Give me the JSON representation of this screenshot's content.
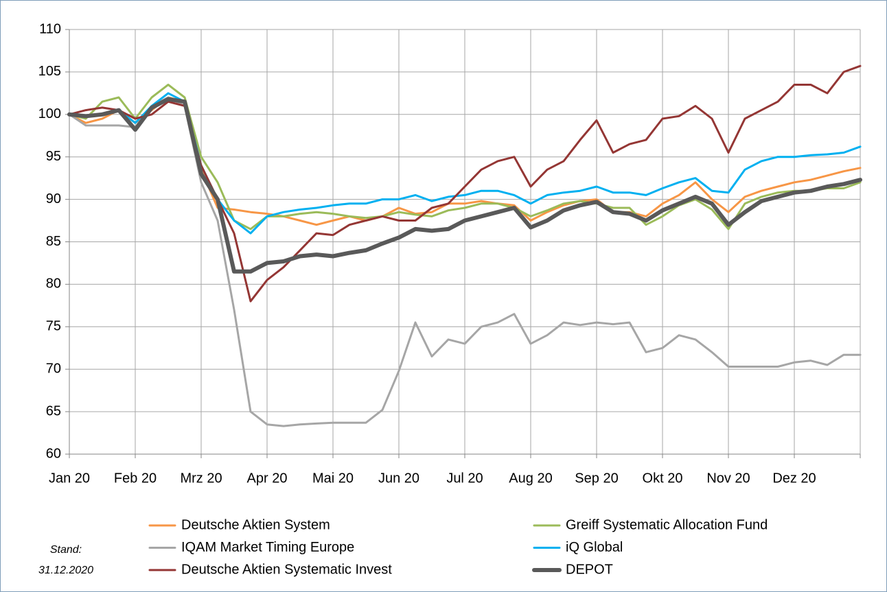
{
  "chart_data": {
    "type": "line",
    "categories": [
      "Jan 20",
      null,
      null,
      null,
      "Feb 20",
      null,
      null,
      null,
      "Mrz 20",
      null,
      null,
      null,
      "Apr 20",
      null,
      null,
      null,
      "Mai 20",
      null,
      null,
      null,
      "Jun 20",
      null,
      null,
      null,
      "Jul 20",
      null,
      null,
      null,
      "Aug 20",
      null,
      null,
      null,
      "Sep 20",
      null,
      null,
      null,
      "Okt 20",
      null,
      null,
      null,
      "Nov 20",
      null,
      null,
      null,
      "Dez 20",
      null,
      null,
      null,
      null
    ],
    "ylim": [
      60,
      110
    ],
    "yticks": [
      60,
      65,
      70,
      75,
      80,
      85,
      90,
      95,
      100,
      105,
      110
    ],
    "grid": true,
    "annotation": [
      "Stand:",
      "31.12.2020"
    ],
    "series": [
      {
        "name": "Deutsche Aktien System",
        "color": "#f79646",
        "width": 3,
        "values": [
          100,
          99,
          99.5,
          100.5,
          99,
          100.5,
          102,
          101.5,
          93.5,
          89,
          88.8,
          88.5,
          88.3,
          88,
          87.5,
          87,
          87.5,
          88,
          87.5,
          88,
          89,
          88.3,
          88.5,
          89.5,
          89.5,
          89.8,
          89.5,
          89.3,
          87.5,
          88.5,
          89.3,
          89.8,
          90,
          88.5,
          88.5,
          88,
          89.5,
          90.5,
          92,
          90,
          88.5,
          90.3,
          91,
          91.5,
          92,
          92.3,
          92.8,
          93.3,
          93.7
        ]
      },
      {
        "name": "Greiff Systematic Allocation Fund",
        "color": "#9bbb59",
        "width": 3,
        "values": [
          100,
          99.5,
          101.5,
          102,
          99.5,
          102,
          103.5,
          102,
          95,
          92,
          87.5,
          86.5,
          88,
          88,
          88.3,
          88.5,
          88.3,
          88,
          87.8,
          88,
          88.5,
          88.2,
          88,
          88.7,
          89,
          89.5,
          89.5,
          89,
          88,
          88.7,
          89.5,
          89.8,
          89.5,
          89,
          89,
          87,
          88,
          89.3,
          90,
          88.8,
          86.5,
          89.5,
          90.3,
          90.8,
          91,
          91,
          91.3,
          91.3,
          92
        ]
      },
      {
        "name": "IQAM Market Timing Europe",
        "color": "#a6a6a6",
        "width": 3,
        "values": [
          100,
          98.7,
          98.7,
          98.7,
          98.5,
          101,
          102,
          101,
          92,
          87.5,
          77,
          65,
          63.5,
          63.3,
          63.5,
          63.6,
          63.7,
          63.7,
          63.7,
          65.2,
          69.8,
          75.5,
          71.5,
          73.5,
          73,
          75,
          75.5,
          76.5,
          73,
          74,
          75.5,
          75.2,
          75.5,
          75.3,
          75.5,
          72,
          72.5,
          74,
          73.5,
          72,
          70.3,
          70.3,
          70.3,
          70.3,
          70.8,
          71,
          70.5,
          71.7,
          71.7
        ]
      },
      {
        "name": "iQ Global",
        "color": "#00b0f0",
        "width": 3,
        "values": [
          100,
          99.8,
          100,
          100.5,
          99,
          101,
          102.5,
          101.5,
          94,
          90,
          87.5,
          86,
          88,
          88.5,
          88.8,
          89,
          89.3,
          89.5,
          89.5,
          90,
          90,
          90.5,
          89.8,
          90.3,
          90.5,
          91,
          91,
          90.5,
          89.5,
          90.5,
          90.8,
          91,
          91.5,
          90.8,
          90.8,
          90.5,
          91.3,
          92,
          92.5,
          91,
          90.8,
          93.5,
          94.5,
          95,
          95,
          95.2,
          95.3,
          95.5,
          96.2
        ]
      },
      {
        "name": "Deutsche Aktien Systematic Invest",
        "color": "#943634",
        "width": 3,
        "values": [
          100,
          100.5,
          100.8,
          100.5,
          99.5,
          100,
          101.5,
          101,
          94,
          90,
          86,
          78,
          80.5,
          82,
          84,
          86,
          85.8,
          87,
          87.5,
          88,
          87.5,
          87.5,
          89,
          89.5,
          91.5,
          93.5,
          94.5,
          95,
          91.5,
          93.5,
          94.5,
          97,
          99.3,
          95.5,
          96.5,
          97,
          99.5,
          99.8,
          101,
          99.5,
          95.5,
          99.5,
          100.5,
          101.5,
          103.5,
          103.5,
          102.5,
          105,
          105.7
        ]
      },
      {
        "name": "DEPOT",
        "color": "#595959",
        "width": 6,
        "values": [
          100,
          99.8,
          100,
          100.5,
          98.2,
          100.8,
          101.8,
          101.5,
          93,
          90,
          81.5,
          81.5,
          82.5,
          82.7,
          83.3,
          83.5,
          83.3,
          83.7,
          84,
          84.8,
          85.5,
          86.5,
          86.3,
          86.5,
          87.5,
          88,
          88.5,
          89,
          86.7,
          87.5,
          88.7,
          89.3,
          89.7,
          88.5,
          88.3,
          87.5,
          88.7,
          89.5,
          90.3,
          89.5,
          87,
          88.5,
          89.8,
          90.3,
          90.8,
          91,
          91.5,
          91.8,
          92.3
        ]
      }
    ]
  }
}
